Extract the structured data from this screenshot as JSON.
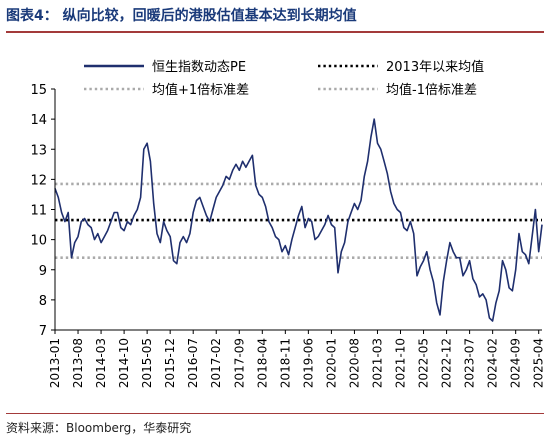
{
  "figure_title": "图表4：  纵向比较，回暖后的港股估值基本达到长期均值",
  "source": "资料来源：Bloomberg，华泰研究",
  "chart_data": {
    "type": "line",
    "title": "",
    "xlabel": "",
    "ylabel": "",
    "ylim": [
      7,
      15
    ],
    "yticks": [
      7,
      8,
      9,
      10,
      11,
      12,
      13,
      14,
      15
    ],
    "x_range": [
      "2013-01",
      "2025-05"
    ],
    "x_ticks": [
      "2013-01",
      "2013-08",
      "2014-03",
      "2014-10",
      "2015-05",
      "2015-12",
      "2016-07",
      "2017-02",
      "2017-09",
      "2018-04",
      "2018-11",
      "2019-06",
      "2020-01",
      "2020-08",
      "2021-03",
      "2021-10",
      "2022-05",
      "2022-12",
      "2023-07",
      "2024-02",
      "2024-09",
      "2025-04"
    ],
    "grid": false,
    "legend_position": "top",
    "series": [
      {
        "name": "恒生指数动态PE",
        "color": "#1f2f6e",
        "points": [
          [
            "2013-01",
            11.7
          ],
          [
            "2013-02",
            11.4
          ],
          [
            "2013-03",
            10.9
          ],
          [
            "2013-04",
            10.6
          ],
          [
            "2013-05",
            10.9
          ],
          [
            "2013-06",
            9.4
          ],
          [
            "2013-07",
            9.9
          ],
          [
            "2013-08",
            10.1
          ],
          [
            "2013-09",
            10.6
          ],
          [
            "2013-10",
            10.7
          ],
          [
            "2013-11",
            10.5
          ],
          [
            "2013-12",
            10.4
          ],
          [
            "2014-01",
            10.0
          ],
          [
            "2014-02",
            10.2
          ],
          [
            "2014-03",
            9.9
          ],
          [
            "2014-04",
            10.1
          ],
          [
            "2014-05",
            10.3
          ],
          [
            "2014-06",
            10.6
          ],
          [
            "2014-07",
            10.9
          ],
          [
            "2014-08",
            10.9
          ],
          [
            "2014-09",
            10.4
          ],
          [
            "2014-10",
            10.3
          ],
          [
            "2014-11",
            10.6
          ],
          [
            "2014-12",
            10.5
          ],
          [
            "2015-01",
            10.8
          ],
          [
            "2015-02",
            11.0
          ],
          [
            "2015-03",
            11.4
          ],
          [
            "2015-04",
            13.0
          ],
          [
            "2015-05",
            13.2
          ],
          [
            "2015-06",
            12.6
          ],
          [
            "2015-07",
            11.2
          ],
          [
            "2015-08",
            10.2
          ],
          [
            "2015-09",
            9.9
          ],
          [
            "2015-10",
            10.6
          ],
          [
            "2015-11",
            10.3
          ],
          [
            "2015-12",
            10.1
          ],
          [
            "2016-01",
            9.3
          ],
          [
            "2016-02",
            9.2
          ],
          [
            "2016-03",
            9.9
          ],
          [
            "2016-04",
            10.1
          ],
          [
            "2016-05",
            9.9
          ],
          [
            "2016-06",
            10.2
          ],
          [
            "2016-07",
            10.9
          ],
          [
            "2016-08",
            11.3
          ],
          [
            "2016-09",
            11.4
          ],
          [
            "2016-10",
            11.1
          ],
          [
            "2016-11",
            10.8
          ],
          [
            "2016-12",
            10.6
          ],
          [
            "2017-01",
            11.0
          ],
          [
            "2017-02",
            11.4
          ],
          [
            "2017-03",
            11.6
          ],
          [
            "2017-04",
            11.8
          ],
          [
            "2017-05",
            12.1
          ],
          [
            "2017-06",
            12.0
          ],
          [
            "2017-07",
            12.3
          ],
          [
            "2017-08",
            12.5
          ],
          [
            "2017-09",
            12.3
          ],
          [
            "2017-10",
            12.6
          ],
          [
            "2017-11",
            12.4
          ],
          [
            "2017-12",
            12.6
          ],
          [
            "2018-01",
            12.8
          ],
          [
            "2018-02",
            11.8
          ],
          [
            "2018-03",
            11.5
          ],
          [
            "2018-04",
            11.4
          ],
          [
            "2018-05",
            11.1
          ],
          [
            "2018-06",
            10.6
          ],
          [
            "2018-07",
            10.4
          ],
          [
            "2018-08",
            10.1
          ],
          [
            "2018-09",
            10.0
          ],
          [
            "2018-10",
            9.6
          ],
          [
            "2018-11",
            9.8
          ],
          [
            "2018-12",
            9.5
          ],
          [
            "2019-01",
            10.0
          ],
          [
            "2019-02",
            10.4
          ],
          [
            "2019-03",
            10.8
          ],
          [
            "2019-04",
            11.1
          ],
          [
            "2019-05",
            10.4
          ],
          [
            "2019-06",
            10.7
          ],
          [
            "2019-07",
            10.6
          ],
          [
            "2019-08",
            10.0
          ],
          [
            "2019-09",
            10.1
          ],
          [
            "2019-10",
            10.3
          ],
          [
            "2019-11",
            10.5
          ],
          [
            "2019-12",
            10.8
          ],
          [
            "2020-01",
            10.5
          ],
          [
            "2020-02",
            10.4
          ],
          [
            "2020-03",
            8.9
          ],
          [
            "2020-04",
            9.6
          ],
          [
            "2020-05",
            9.9
          ],
          [
            "2020-06",
            10.6
          ],
          [
            "2020-07",
            10.9
          ],
          [
            "2020-08",
            11.2
          ],
          [
            "2020-09",
            11.0
          ],
          [
            "2020-10",
            11.3
          ],
          [
            "2020-11",
            12.1
          ],
          [
            "2020-12",
            12.6
          ],
          [
            "2021-01",
            13.4
          ],
          [
            "2021-02",
            14.0
          ],
          [
            "2021-03",
            13.2
          ],
          [
            "2021-04",
            13.0
          ],
          [
            "2021-05",
            12.6
          ],
          [
            "2021-06",
            12.2
          ],
          [
            "2021-07",
            11.6
          ],
          [
            "2021-08",
            11.2
          ],
          [
            "2021-09",
            11.0
          ],
          [
            "2021-10",
            10.9
          ],
          [
            "2021-11",
            10.4
          ],
          [
            "2021-12",
            10.3
          ],
          [
            "2022-01",
            10.6
          ],
          [
            "2022-02",
            10.2
          ],
          [
            "2022-03",
            8.8
          ],
          [
            "2022-04",
            9.1
          ],
          [
            "2022-05",
            9.3
          ],
          [
            "2022-06",
            9.6
          ],
          [
            "2022-07",
            9.0
          ],
          [
            "2022-08",
            8.6
          ],
          [
            "2022-09",
            7.9
          ],
          [
            "2022-10",
            7.5
          ],
          [
            "2022-11",
            8.6
          ],
          [
            "2022-12",
            9.3
          ],
          [
            "2023-01",
            9.9
          ],
          [
            "2023-02",
            9.6
          ],
          [
            "2023-03",
            9.4
          ],
          [
            "2023-04",
            9.4
          ],
          [
            "2023-05",
            8.8
          ],
          [
            "2023-06",
            9.0
          ],
          [
            "2023-07",
            9.3
          ],
          [
            "2023-08",
            8.7
          ],
          [
            "2023-09",
            8.5
          ],
          [
            "2023-10",
            8.1
          ],
          [
            "2023-11",
            8.2
          ],
          [
            "2023-12",
            8.0
          ],
          [
            "2024-01",
            7.4
          ],
          [
            "2024-02",
            7.3
          ],
          [
            "2024-03",
            7.9
          ],
          [
            "2024-04",
            8.3
          ],
          [
            "2024-05",
            9.3
          ],
          [
            "2024-06",
            9.0
          ],
          [
            "2024-07",
            8.4
          ],
          [
            "2024-08",
            8.3
          ],
          [
            "2024-09",
            9.0
          ],
          [
            "2024-10",
            10.2
          ],
          [
            "2024-11",
            9.6
          ],
          [
            "2024-12",
            9.5
          ],
          [
            "2025-01",
            9.2
          ],
          [
            "2025-02",
            10.1
          ],
          [
            "2025-03",
            11.0
          ],
          [
            "2025-04",
            9.6
          ],
          [
            "2025-05",
            10.5
          ]
        ]
      },
      {
        "name": "2013年以来均值",
        "value": 10.65,
        "color": "#000000",
        "style": "dotted"
      },
      {
        "name": "均值+1倍标准差",
        "value": 11.85,
        "color": "#aaaaaa",
        "style": "dotted"
      },
      {
        "name": "均值-1倍标准差",
        "value": 9.4,
        "color": "#aaaaaa",
        "style": "dotted"
      }
    ]
  }
}
